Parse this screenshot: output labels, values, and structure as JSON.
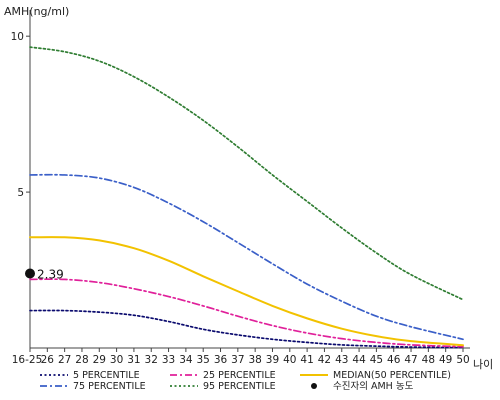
{
  "chart_data": {
    "type": "line",
    "ylabel": "AMH(ng/ml)",
    "xlabel": "나이",
    "x_categories": [
      "16-25",
      "26",
      "27",
      "28",
      "29",
      "30",
      "31",
      "32",
      "33",
      "34",
      "35",
      "36",
      "37",
      "38",
      "39",
      "40",
      "41",
      "42",
      "43",
      "44",
      "45",
      "46",
      "47",
      "48",
      "49",
      "50"
    ],
    "x_numeric": [
      25,
      26,
      27,
      28,
      29,
      30,
      31,
      32,
      33,
      34,
      35,
      36,
      37,
      38,
      39,
      40,
      41,
      42,
      43,
      44,
      45,
      46,
      47,
      48,
      49,
      50
    ],
    "yticks": [
      5,
      10
    ],
    "ylim": [
      0,
      11
    ],
    "grid": false,
    "legend_position": "bottom",
    "series": [
      {
        "name": "5 PERCENTILE",
        "color": "#0a0a6e",
        "style": "dotted",
        "points": [
          [
            25,
            1.2
          ],
          [
            27,
            1.2
          ],
          [
            29,
            1.15
          ],
          [
            31,
            1.05
          ],
          [
            33,
            0.85
          ],
          [
            35,
            0.6
          ],
          [
            37,
            0.42
          ],
          [
            39,
            0.28
          ],
          [
            41,
            0.18
          ],
          [
            43,
            0.1
          ],
          [
            45,
            0.06
          ],
          [
            47,
            0.03
          ],
          [
            50,
            0.01
          ]
        ]
      },
      {
        "name": "25 PERCENTILE",
        "color": "#e0209a",
        "style": "dashdot",
        "points": [
          [
            25,
            2.2
          ],
          [
            27,
            2.2
          ],
          [
            29,
            2.1
          ],
          [
            31,
            1.9
          ],
          [
            33,
            1.65
          ],
          [
            35,
            1.35
          ],
          [
            37,
            1.02
          ],
          [
            39,
            0.72
          ],
          [
            41,
            0.48
          ],
          [
            43,
            0.3
          ],
          [
            45,
            0.18
          ],
          [
            47,
            0.1
          ],
          [
            50,
            0.04
          ]
        ]
      },
      {
        "name": "MEDIAN(50 PERCENTILE)",
        "color": "#f2c200",
        "style": "solid",
        "points": [
          [
            25,
            3.55
          ],
          [
            27,
            3.55
          ],
          [
            29,
            3.45
          ],
          [
            31,
            3.2
          ],
          [
            33,
            2.8
          ],
          [
            35,
            2.3
          ],
          [
            37,
            1.82
          ],
          [
            39,
            1.35
          ],
          [
            41,
            0.95
          ],
          [
            43,
            0.62
          ],
          [
            45,
            0.38
          ],
          [
            47,
            0.22
          ],
          [
            50,
            0.09
          ]
        ]
      },
      {
        "name": "75 PERCENTILE",
        "color": "#3a5fc8",
        "style": "dashdot",
        "points": [
          [
            25,
            5.55
          ],
          [
            27,
            5.55
          ],
          [
            29,
            5.45
          ],
          [
            31,
            5.15
          ],
          [
            33,
            4.65
          ],
          [
            35,
            4.05
          ],
          [
            37,
            3.38
          ],
          [
            39,
            2.7
          ],
          [
            41,
            2.05
          ],
          [
            43,
            1.5
          ],
          [
            45,
            1.02
          ],
          [
            47,
            0.68
          ],
          [
            50,
            0.28
          ]
        ]
      },
      {
        "name": "95 PERCENTILE",
        "color": "#2f7d32",
        "style": "dotted",
        "points": [
          [
            25,
            9.65
          ],
          [
            27,
            9.5
          ],
          [
            29,
            9.2
          ],
          [
            31,
            8.7
          ],
          [
            33,
            8.05
          ],
          [
            35,
            7.3
          ],
          [
            37,
            6.45
          ],
          [
            39,
            5.55
          ],
          [
            41,
            4.7
          ],
          [
            43,
            3.85
          ],
          [
            45,
            3.05
          ],
          [
            47,
            2.35
          ],
          [
            50,
            1.55
          ]
        ]
      }
    ],
    "marker": {
      "label": "수진자의 AMH 농도",
      "x": 25,
      "y": 2.39,
      "value_text": "2.39",
      "color": "#111111"
    }
  }
}
